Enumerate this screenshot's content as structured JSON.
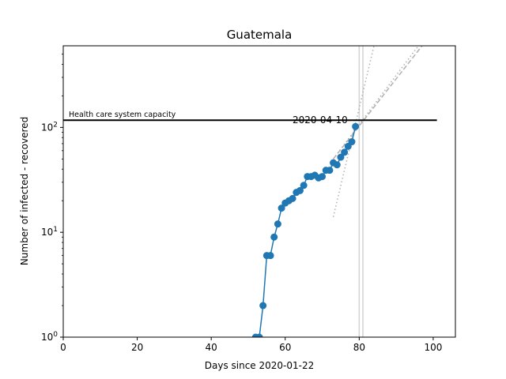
{
  "chart_data": {
    "type": "line",
    "title": "Guatemala",
    "xlabel": "Days since 2020-01-22",
    "ylabel": "Number of infected - recovered",
    "yscale": "log",
    "xlim": [
      0,
      106
    ],
    "ylim": [
      1,
      600
    ],
    "x_ticks": [
      0,
      20,
      40,
      60,
      80,
      100
    ],
    "x_tick_labels": [
      "0",
      "20",
      "40",
      "60",
      "80",
      "100"
    ],
    "y_ticks": [
      1,
      10,
      100
    ],
    "y_tick_labels": [
      "10^0",
      "10^1",
      "10^2"
    ],
    "grid": false,
    "series": [
      {
        "color": "#1f77b4",
        "marker": "circle",
        "x": [
          52,
          53,
          54,
          55,
          56,
          57,
          58,
          59,
          60,
          61,
          62,
          63,
          64,
          65,
          66,
          67,
          68,
          69,
          70,
          71,
          72,
          73,
          74,
          75,
          76,
          77,
          78,
          79
        ],
        "y": [
          1,
          1,
          2,
          6,
          6,
          9,
          12,
          17,
          19,
          20,
          21,
          24,
          25,
          28,
          34,
          34,
          35,
          33,
          34,
          39,
          39,
          46,
          44,
          52,
          58,
          66,
          73,
          102
        ]
      }
    ],
    "capacity_line": {
      "y": 117,
      "x_start": 0,
      "x_end": 101,
      "label": "Health care system capacity",
      "color": "#000000"
    },
    "annotation": {
      "text": "2020-04-10",
      "x": 62,
      "y": 110
    },
    "vertical_lines": [
      {
        "x": 80,
        "color": "#d3d3d3"
      },
      {
        "x": 81,
        "color": "#d3d3d3"
      }
    ],
    "fit_lines": [
      {
        "style": "dotted",
        "color": "#b0b0b0",
        "x": [
          73,
          84
        ],
        "y": [
          14,
          600
        ]
      },
      {
        "style": "dotted",
        "color": "#b0b0b0",
        "x": [
          73,
          96
        ],
        "y": [
          50,
          600
        ]
      },
      {
        "style": "dashed",
        "color": "#b0b0b0",
        "x": [
          73,
          97
        ],
        "y": [
          50,
          600
        ]
      }
    ]
  }
}
